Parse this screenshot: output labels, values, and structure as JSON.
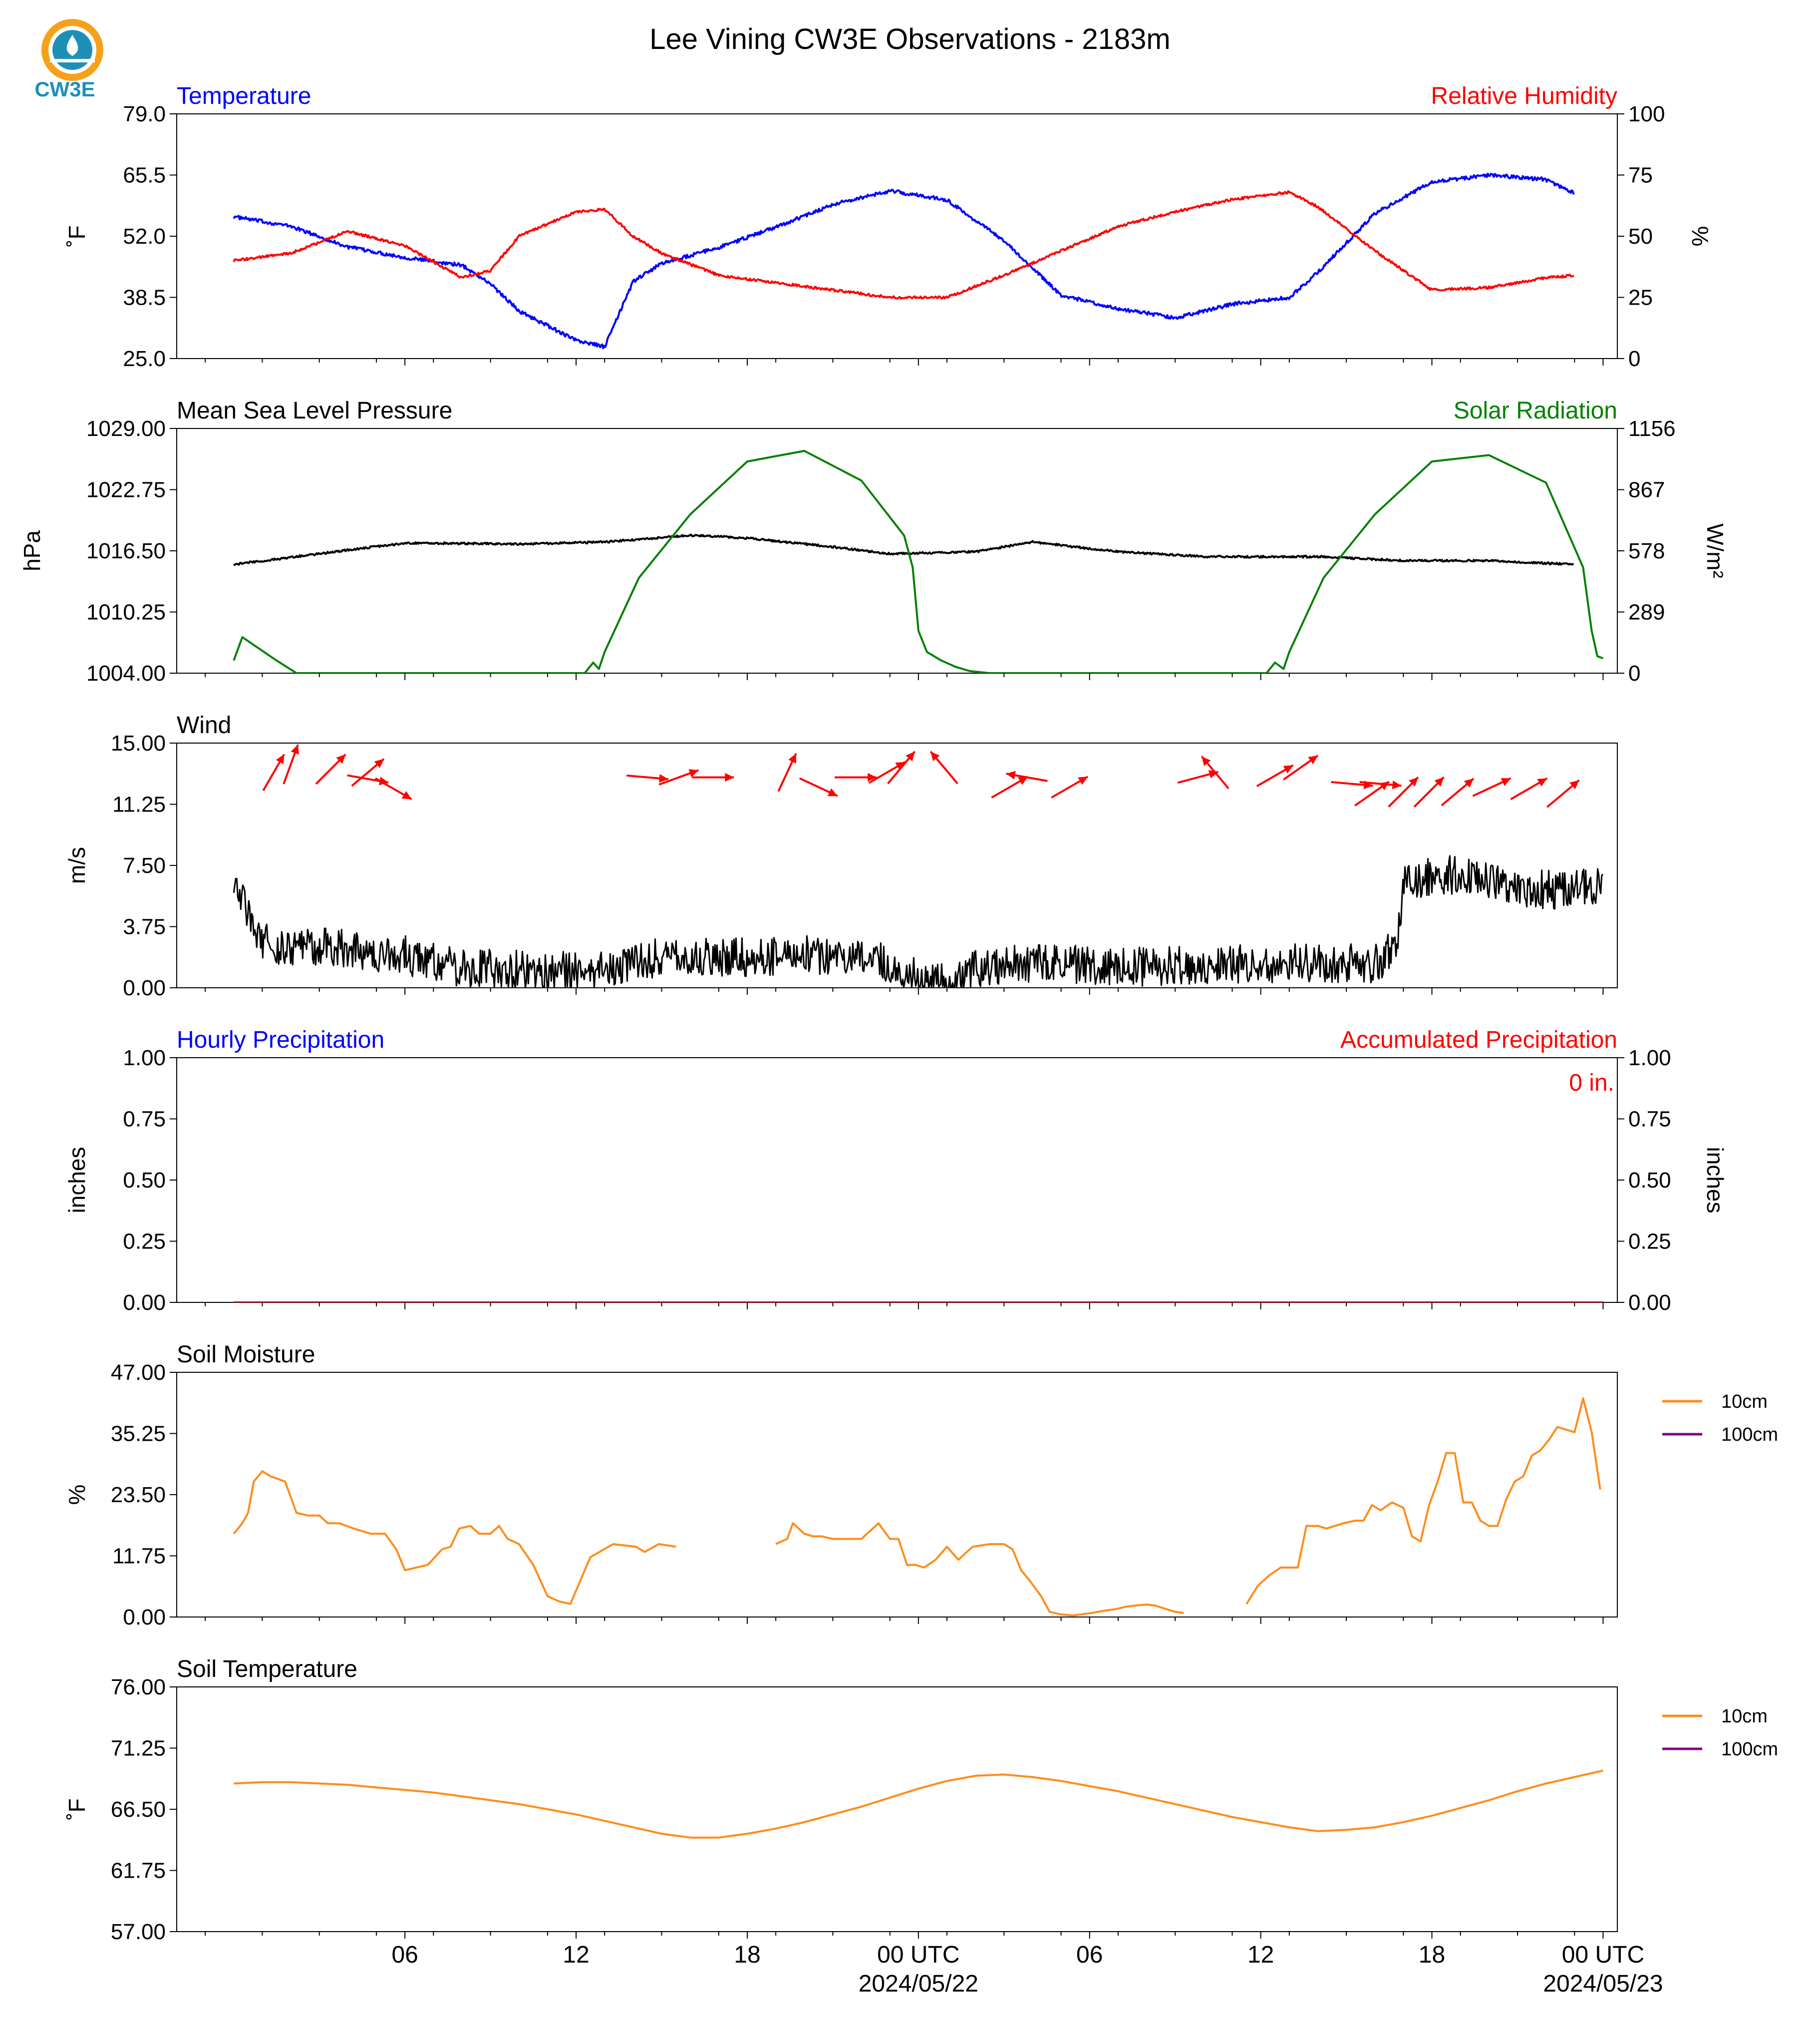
{
  "figure": {
    "title": "Lee Vining CW3E Observations - 2183m",
    "logo_text": "CW3E",
    "x_tick_labels": [
      "06",
      "12",
      "18",
      "00 UTC",
      "06",
      "12",
      "18",
      "00 UTC"
    ],
    "x_date_labels": [
      "2024/05/22",
      "2024/05/23"
    ],
    "colors": {
      "blue": "#0000ff",
      "red": "#ff0000",
      "green": "#008000",
      "black": "#000000",
      "orange": "#ff8c1a",
      "purple": "#800080",
      "logo": "#1f8fb8",
      "logo_sun": "#f7a11a"
    }
  },
  "chart_data": [
    {
      "id": "temp-rh",
      "type": "line",
      "title_left": "Temperature",
      "title_right": "Relative Humidity",
      "ylabel_left": "˚F",
      "ylabel_right": "%",
      "ylim_left": [
        25.0,
        79.0
      ],
      "ylim_right": [
        0,
        100
      ],
      "yticks_left": [
        "25.0",
        "38.5",
        "52.0",
        "65.5",
        "79.0"
      ],
      "yticks_right": [
        "0",
        "25",
        "50",
        "75",
        "100"
      ],
      "x_hours": [
        0,
        2,
        4,
        6,
        8,
        9,
        10,
        12,
        13,
        14,
        15,
        17,
        19,
        21,
        23,
        25,
        27,
        29,
        31,
        33,
        35,
        37,
        38,
        40,
        42,
        44,
        46,
        47
      ],
      "series": [
        {
          "name": "Temperature",
          "color": "blue",
          "axis": "left",
          "noise": 0.4,
          "values": [
            56.3,
            54.2,
            49.6,
            47.3,
            45.6,
            41.5,
            35.5,
            29.0,
            27.6,
            42.0,
            46.0,
            49.5,
            54.0,
            59.0,
            62.0,
            60.0,
            51.0,
            39.0,
            36.0,
            34.0,
            37.0,
            38.5,
            44.0,
            57.0,
            64.0,
            65.5,
            64.5,
            61.5
          ]
        },
        {
          "name": "Relative Humidity",
          "color": "red",
          "axis": "right",
          "noise": 0.5,
          "values": [
            40,
            43,
            52,
            46,
            33,
            36,
            50,
            60,
            61,
            50,
            43,
            34,
            31,
            28,
            25,
            25,
            34,
            44,
            54,
            60,
            65,
            68,
            62,
            44,
            28,
            29,
            33,
            34
          ]
        }
      ]
    },
    {
      "id": "pressure-solar",
      "type": "line",
      "title_left": "Mean Sea Level Pressure",
      "title_right": "Solar Radiation",
      "ylabel_left": "hPa",
      "ylabel_right": "W/m²",
      "ylim_left": [
        1004.0,
        1029.0
      ],
      "ylim_right": [
        0,
        1156
      ],
      "yticks_left": [
        "1004.00",
        "1010.25",
        "1016.50",
        "1022.75",
        "1029.00"
      ],
      "yticks_right": [
        "0",
        "289",
        "578",
        "867",
        "1156"
      ],
      "series": [
        {
          "name": "Mean Sea Level Pressure",
          "color": "black",
          "axis": "left",
          "noise": 0.1,
          "x_hours": [
            0,
            3,
            6,
            10,
            13,
            16,
            18,
            21,
            23,
            26,
            28,
            31,
            34,
            38,
            41,
            44,
            47
          ],
          "values": [
            1015.1,
            1016.2,
            1017.3,
            1017.2,
            1017.4,
            1018.1,
            1017.8,
            1016.9,
            1016.2,
            1016.4,
            1017.4,
            1016.4,
            1015.9,
            1015.9,
            1015.5,
            1015.5,
            1015.1
          ]
        },
        {
          "name": "Solar Radiation",
          "color": "green",
          "axis": "right",
          "noise": 0,
          "x_hours": [
            0,
            0.3,
            1.5,
            2.2,
            6,
            10,
            11.3,
            12.3,
            12.6,
            12.8,
            13.0,
            14.2,
            16,
            18,
            20,
            22,
            23.5,
            23.8,
            24.0,
            24.3,
            24.8,
            25.3,
            25.8,
            26.5,
            30,
            34,
            35.2,
            36.2,
            36.5,
            36.8,
            37.0,
            38.2,
            40,
            42,
            44,
            46,
            47.3,
            47.6,
            47.8,
            48
          ],
          "values": [
            60,
            170,
            60,
            0,
            0,
            0,
            0,
            0,
            50,
            20,
            100,
            450,
            750,
            1000,
            1050,
            910,
            650,
            500,
            200,
            100,
            60,
            30,
            10,
            0,
            0,
            0,
            0,
            0,
            50,
            20,
            100,
            450,
            750,
            1000,
            1030,
            900,
            500,
            200,
            80,
            70
          ]
        }
      ]
    },
    {
      "id": "wind",
      "type": "line",
      "title_left": "Wind",
      "ylabel_left": "m/s",
      "ylim_left": [
        0.0,
        15.0
      ],
      "yticks_left": [
        "0.00",
        "3.75",
        "7.50",
        "11.25",
        "15.00"
      ],
      "series": [
        {
          "name": "Wind Speed",
          "color": "black",
          "axis": "left",
          "noise": 1.2,
          "x_hours": [
            0,
            0.8,
            1.5,
            3,
            6,
            8,
            12,
            13.5,
            14,
            16,
            20,
            23,
            24,
            25,
            26,
            28,
            32,
            36,
            40,
            40.8,
            41,
            43,
            45,
            47,
            48
          ],
          "values": [
            7.0,
            3.0,
            2.5,
            2.5,
            2.0,
            1.2,
            1.0,
            1.0,
            1.8,
            1.8,
            2.0,
            1.5,
            0.5,
            0.2,
            1.2,
            1.5,
            1.3,
            1.5,
            1.5,
            2.5,
            6.5,
            7.0,
            6.0,
            6.0,
            6.5
          ]
        }
      ],
      "barbs": [
        {
          "hour": 1.4,
          "speed": 13.2,
          "dir_deg": 30
        },
        {
          "hour": 2.0,
          "speed": 13.7,
          "dir_deg": 20
        },
        {
          "hour": 3.4,
          "speed": 13.4,
          "dir_deg": 45
        },
        {
          "hour": 4.7,
          "speed": 13.2,
          "dir_deg": 50
        },
        {
          "hour": 4.7,
          "speed": 12.8,
          "dir_deg": 100
        },
        {
          "hour": 5.6,
          "speed": 12.2,
          "dir_deg": 120
        },
        {
          "hour": 14.5,
          "speed": 12.9,
          "dir_deg": 95
        },
        {
          "hour": 15.6,
          "speed": 12.9,
          "dir_deg": 70
        },
        {
          "hour": 16.8,
          "speed": 12.9,
          "dir_deg": 90
        },
        {
          "hour": 19.4,
          "speed": 13.2,
          "dir_deg": 25
        },
        {
          "hour": 20.5,
          "speed": 12.3,
          "dir_deg": 115
        },
        {
          "hour": 21.8,
          "speed": 12.9,
          "dir_deg": 90
        },
        {
          "hour": 22.9,
          "speed": 13.2,
          "dir_deg": 60
        },
        {
          "hour": 23.4,
          "speed": 13.5,
          "dir_deg": 40
        },
        {
          "hour": 24.9,
          "speed": 13.5,
          "dir_deg": 320
        },
        {
          "hour": 27.2,
          "speed": 12.3,
          "dir_deg": 60
        },
        {
          "hour": 27.8,
          "speed": 12.9,
          "dir_deg": 280
        },
        {
          "hour": 29.3,
          "speed": 12.3,
          "dir_deg": 60
        },
        {
          "hour": 33.8,
          "speed": 12.9,
          "dir_deg": 75
        },
        {
          "hour": 34.4,
          "speed": 13.2,
          "dir_deg": 320
        },
        {
          "hour": 36.5,
          "speed": 13.0,
          "dir_deg": 60
        },
        {
          "hour": 37.4,
          "speed": 13.5,
          "dir_deg": 55
        },
        {
          "hour": 39.2,
          "speed": 12.5,
          "dir_deg": 95
        },
        {
          "hour": 40.2,
          "speed": 12.5,
          "dir_deg": 95
        },
        {
          "hour": 39.9,
          "speed": 11.9,
          "dir_deg": 55
        },
        {
          "hour": 41.0,
          "speed": 12.0,
          "dir_deg": 45
        },
        {
          "hour": 41.9,
          "speed": 12.0,
          "dir_deg": 45
        },
        {
          "hour": 42.9,
          "speed": 12.0,
          "dir_deg": 50
        },
        {
          "hour": 44.1,
          "speed": 12.3,
          "dir_deg": 65
        },
        {
          "hour": 45.4,
          "speed": 12.2,
          "dir_deg": 60
        },
        {
          "hour": 46.6,
          "speed": 11.9,
          "dir_deg": 50
        }
      ]
    },
    {
      "id": "precip",
      "type": "line",
      "title_left": "Hourly Precipitation",
      "title_right": "Accumulated Precipitation",
      "annotation": "0 in.",
      "ylabel_left": "inches",
      "ylabel_right": "inches",
      "ylim_left": [
        0.0,
        1.0
      ],
      "ylim_right": [
        0.0,
        1.0
      ],
      "yticks_left": [
        "0.00",
        "0.25",
        "0.50",
        "0.75",
        "1.00"
      ],
      "yticks_right": [
        "0.00",
        "0.25",
        "0.50",
        "0.75",
        "1.00"
      ],
      "series": [
        {
          "name": "Hourly Precipitation",
          "color": "blue",
          "axis": "left",
          "noise": 0,
          "x_hours": [
            0,
            48
          ],
          "values": [
            0,
            0
          ]
        },
        {
          "name": "Accumulated Precipitation",
          "color": "red",
          "axis": "right",
          "noise": 0,
          "x_hours": [
            0,
            48
          ],
          "values": [
            0,
            0
          ]
        }
      ]
    },
    {
      "id": "soil-moisture",
      "type": "line",
      "title_left": "Soil Moisture",
      "ylabel_left": "%",
      "ylim_left": [
        0.0,
        47.0
      ],
      "yticks_left": [
        "0.00",
        "11.75",
        "23.50",
        "35.25",
        "47.00"
      ],
      "legend": [
        {
          "label": "10cm",
          "color": "orange"
        },
        {
          "label": "100cm",
          "color": "purple"
        }
      ],
      "series": [
        {
          "name": "10cm",
          "color": "orange",
          "axis": "left",
          "noise": 0,
          "segments": [
            {
              "x_hours": [
                0,
                0.3,
                0.5,
                0.7,
                1.0,
                1.3,
                1.8,
                2.2,
                2.6,
                3.0,
                3.3,
                3.7,
                4.2,
                4.8,
                5.3,
                5.7,
                6.0,
                6.4,
                6.8,
                7.3,
                7.6,
                7.9,
                8.3,
                8.6,
                9.0,
                9.3,
                9.6,
                10.0,
                10.5,
                11.0,
                11.4,
                11.8,
                12.5,
                13.3,
                14.1,
                14.4,
                14.9,
                15.5
              ],
              "values": [
                16,
                18,
                20,
                26,
                28,
                27,
                26,
                20,
                19.5,
                19.5,
                18,
                18,
                17,
                16,
                16,
                13,
                9,
                9.5,
                10,
                13,
                13.5,
                17,
                17.5,
                16,
                16,
                17.5,
                15,
                14,
                10,
                4,
                3,
                2.5,
                11.5,
                14,
                13.5,
                12.5,
                14,
                13.5
              ]
            },
            {
              "x_hours": [
                19.0,
                19.4,
                19.6,
                20.0,
                20.3,
                20.6,
                21.0,
                21.5,
                22.0,
                22.6,
                23.0,
                23.3,
                23.6,
                23.9,
                24.2,
                24.6,
                25.0,
                25.4,
                25.9,
                26.5,
                27.0,
                27.3,
                27.6,
                27.9,
                28.3,
                28.6,
                29.0,
                29.4,
                29.7,
                30.1,
                30.5,
                30.9,
                31.3,
                31.6,
                32.0,
                32.3,
                32.7,
                33.0,
                33.3
              ],
              "values": [
                14,
                15,
                18,
                16,
                15.5,
                15.5,
                15,
                15,
                15,
                18,
                15,
                15,
                10,
                10,
                9.5,
                11,
                13.5,
                11,
                13.5,
                14,
                14,
                13,
                9,
                7,
                4,
                1,
                0.5,
                0.3,
                0.5,
                0.8,
                1.2,
                1.5,
                2,
                2.2,
                2.4,
                2.2,
                1.5,
                1.0,
                0.8
              ]
            },
            {
              "x_hours": [
                35.5,
                35.9,
                36.3,
                36.7,
                37.0,
                37.3,
                37.6,
                38.0,
                38.3,
                38.6,
                38.9,
                39.3,
                39.6,
                39.9,
                40.2,
                40.6,
                41.0,
                41.3,
                41.6,
                41.9,
                42.2,
                42.5,
                42.8,
                43.1,
                43.4,
                43.7,
                44.0,
                44.3,
                44.6,
                44.9,
                45.2,
                45.5,
                45.8,
                46.1,
                46.4,
                46.7,
                47.0,
                47.3,
                47.6,
                47.9
              ],
              "values": [
                2.5,
                6,
                8,
                9.5,
                9.5,
                9.5,
                17.5,
                17.5,
                17,
                17.5,
                18,
                18.5,
                18.5,
                21.5,
                20.5,
                22,
                21,
                15.5,
                14.5,
                21.5,
                26,
                31.5,
                31.5,
                22,
                22,
                18.5,
                17.5,
                17.5,
                22.5,
                26,
                27,
                31,
                32,
                34,
                36.5,
                36,
                35.5,
                42,
                35.5,
                24.5
              ]
            }
          ]
        },
        {
          "name": "100cm",
          "color": "purple",
          "axis": "left",
          "noise": 0,
          "segments": []
        }
      ]
    },
    {
      "id": "soil-temp",
      "type": "line",
      "title_left": "Soil Temperature",
      "ylabel_left": "˚F",
      "ylim_left": [
        57.0,
        76.0
      ],
      "yticks_left": [
        "57.00",
        "61.75",
        "66.50",
        "71.25",
        "76.00"
      ],
      "legend": [
        {
          "label": "10cm",
          "color": "orange"
        },
        {
          "label": "100cm",
          "color": "purple"
        }
      ],
      "series": [
        {
          "name": "10cm",
          "color": "orange",
          "axis": "left",
          "noise": 0,
          "x_hours": [
            0,
            1,
            2,
            3,
            4,
            5,
            6,
            7,
            8,
            9,
            10,
            11,
            12,
            13,
            14,
            15,
            16,
            17,
            18,
            19,
            20,
            21,
            22,
            23,
            24,
            25,
            26,
            27,
            28,
            29,
            30,
            31,
            32,
            33,
            34,
            35,
            36,
            37,
            38,
            39,
            40,
            41,
            42,
            43,
            44,
            45,
            46,
            47,
            48
          ],
          "values": [
            68.5,
            68.6,
            68.6,
            68.5,
            68.4,
            68.2,
            68.0,
            67.8,
            67.5,
            67.2,
            66.9,
            66.5,
            66.1,
            65.6,
            65.1,
            64.6,
            64.3,
            64.3,
            64.6,
            65.0,
            65.5,
            66.1,
            66.7,
            67.4,
            68.1,
            68.7,
            69.1,
            69.2,
            69.0,
            68.7,
            68.3,
            67.9,
            67.4,
            66.9,
            66.4,
            65.9,
            65.5,
            65.1,
            64.8,
            64.9,
            65.1,
            65.5,
            66.0,
            66.6,
            67.2,
            67.9,
            68.5,
            69.0,
            69.5
          ]
        },
        {
          "name": "100cm",
          "color": "purple",
          "axis": "left",
          "noise": 0,
          "x_hours": [],
          "values": []
        }
      ]
    }
  ]
}
